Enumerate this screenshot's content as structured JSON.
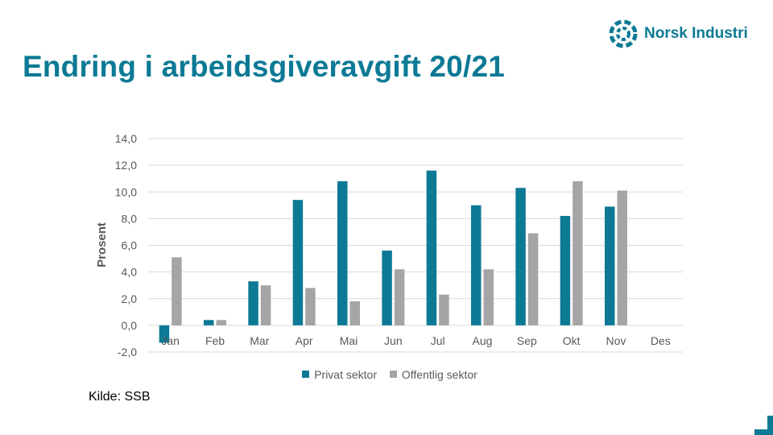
{
  "slide": {
    "title": "Endring i arbeidsgiveravgift 20/21",
    "source": "Kilde: SSB",
    "logo_text": "Norsk Industri",
    "logo_icon": "norsk-industri-logo-icon"
  },
  "colors": {
    "brand": "#0c7a95",
    "privat": "#0c7a95",
    "offentlig": "#a5a5a5",
    "grid": "#d9d9d9",
    "text": "#595959"
  },
  "chart_data": {
    "type": "bar",
    "title": "",
    "xlabel": "",
    "ylabel": "Prosent",
    "categories": [
      "Jan",
      "Feb",
      "Mar",
      "Apr",
      "Mai",
      "Jun",
      "Jul",
      "Aug",
      "Sep",
      "Okt",
      "Nov",
      "Des"
    ],
    "series": [
      {
        "name": "Privat sektor",
        "values": [
          -1.3,
          0.4,
          3.3,
          9.4,
          10.8,
          5.6,
          11.6,
          9.0,
          10.3,
          8.2,
          8.9,
          null
        ]
      },
      {
        "name": "Offentlig sektor",
        "values": [
          5.1,
          0.4,
          3.0,
          2.8,
          1.8,
          4.2,
          2.3,
          4.2,
          6.9,
          10.8,
          10.1,
          null
        ]
      }
    ],
    "ylim": [
      -2.0,
      14.0
    ],
    "ytick_step": 2.0,
    "ytick_labels": [
      "-2,0",
      "0,0",
      "2,0",
      "4,0",
      "6,0",
      "8,0",
      "10,0",
      "12,0",
      "14,0"
    ],
    "grid": true,
    "legend": "bottom"
  }
}
